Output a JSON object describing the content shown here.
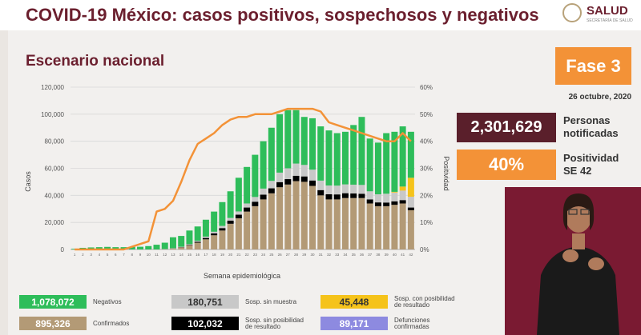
{
  "header": {
    "title": "COVID-19 México: casos positivos, sospechosos y negativos"
  },
  "logo": {
    "text": "SALUD",
    "subtext": "SECRETARÍA DE SALUD"
  },
  "subtitle": "Escenario nacional",
  "phase_badge": "Fase 3",
  "date": "26 octubre, 2020",
  "stats": [
    {
      "value": "2,301,629",
      "label_line1": "Personas",
      "label_line2": "notificadas",
      "color": "#5a1f2b"
    },
    {
      "value": "40%",
      "label_line1": "Positividad",
      "label_line2": "SE 42",
      "color": "#f39237"
    }
  ],
  "legend": [
    {
      "value": "1,078,072",
      "label_line1": "Negativos",
      "label_line2": "",
      "color": "#2ebd5a",
      "text_color": "#ffffff"
    },
    {
      "value": "180,751",
      "label_line1": "Sosp. sin muestra",
      "label_line2": "",
      "color": "#c8c8c8",
      "text_color": "#333333"
    },
    {
      "value": "45,448",
      "label_line1": "Sosp. con posibilidad",
      "label_line2": "de resultado",
      "color": "#f5c31a",
      "text_color": "#333333"
    },
    {
      "value": "895,326",
      "label_line1": "Confirmados",
      "label_line2": "",
      "color": "#b39a76",
      "text_color": "#ffffff"
    },
    {
      "value": "102,032",
      "label_line1": "Sosp. sin posibilidad",
      "label_line2": "de resultado",
      "color": "#000000",
      "text_color": "#ffffff"
    },
    {
      "value": "89,171",
      "label_line1": "Defunciones",
      "label_line2": "confirmadas",
      "color": "#8d8ae0",
      "text_color": "#ffffff"
    }
  ],
  "chart_data": {
    "type": "bar",
    "xlabel": "Semana epidemiológica",
    "ylabel": "Casos",
    "y2label": "Positividad",
    "ylim": [
      0,
      120000
    ],
    "y2lim": [
      0,
      60
    ],
    "yticks": [
      "0",
      "20,000",
      "40,000",
      "60,000",
      "80,000",
      "100,000",
      "120,000"
    ],
    "y2ticks": [
      "0%",
      "10%",
      "20%",
      "30%",
      "40%",
      "50%",
      "60%"
    ],
    "categories": [
      "1",
      "2",
      "3",
      "4",
      "5",
      "6",
      "7",
      "8",
      "9",
      "10",
      "11",
      "12",
      "13",
      "14",
      "15",
      "16",
      "17",
      "18",
      "19",
      "20",
      "21",
      "22",
      "23",
      "24",
      "25",
      "26",
      "27",
      "28",
      "29",
      "30",
      "31",
      "32",
      "33",
      "34",
      "35",
      "36",
      "37",
      "38",
      "39",
      "40",
      "41",
      "42"
    ],
    "series": [
      {
        "name": "Confirmados",
        "color": "#b39a76",
        "values": [
          0,
          0,
          0,
          0,
          0,
          0,
          0,
          0,
          0,
          0,
          0,
          200,
          600,
          1500,
          3000,
          5000,
          7500,
          10500,
          14000,
          19000,
          23000,
          28000,
          32000,
          37000,
          41500,
          46000,
          48000,
          50500,
          50000,
          47000,
          40000,
          37000,
          37000,
          38000,
          38000,
          38000,
          34000,
          32000,
          32000,
          33000,
          34000,
          29000
        ]
      },
      {
        "name": "Sosp. sin posibilidad de resultado",
        "color": "#000000",
        "values": [
          0,
          0,
          0,
          0,
          0,
          0,
          0,
          0,
          0,
          0,
          0,
          0,
          100,
          200,
          400,
          700,
          1000,
          1400,
          1800,
          2300,
          2700,
          3000,
          3300,
          3500,
          3700,
          3800,
          4000,
          4000,
          4000,
          4000,
          3900,
          3800,
          3700,
          3600,
          3400,
          3200,
          3000,
          2800,
          2700,
          2600,
          2500,
          2000
        ]
      },
      {
        "name": "Sosp. sin muestra",
        "color": "#c8c8c8",
        "values": [
          0,
          0,
          0,
          0,
          0,
          0,
          0,
          0,
          0,
          0,
          0,
          100,
          200,
          300,
          500,
          700,
          1000,
          1200,
          1600,
          2000,
          2400,
          3000,
          3500,
          4500,
          5500,
          7000,
          8000,
          9000,
          8500,
          8000,
          7000,
          6500,
          6500,
          6500,
          6500,
          6500,
          6000,
          6000,
          6500,
          6500,
          7000,
          8000
        ]
      },
      {
        "name": "Sosp. con posibilidad de resultado",
        "color": "#f5c31a",
        "values": [
          0,
          0,
          0,
          0,
          0,
          0,
          0,
          0,
          0,
          0,
          0,
          0,
          0,
          0,
          0,
          0,
          0,
          0,
          0,
          0,
          0,
          0,
          0,
          0,
          0,
          0,
          0,
          0,
          0,
          0,
          0,
          0,
          0,
          0,
          0,
          0,
          0,
          0,
          0,
          500,
          3000,
          14000
        ]
      },
      {
        "name": "Negativos",
        "color": "#2ebd5a",
        "values": [
          500,
          1200,
          1500,
          1700,
          1900,
          1700,
          1700,
          1900,
          2000,
          2500,
          3500,
          4700,
          8100,
          8000,
          10100,
          10600,
          12500,
          14900,
          17600,
          19700,
          24900,
          27000,
          31200,
          35000,
          39300,
          43200,
          43000,
          39500,
          35500,
          38000,
          40100,
          40700,
          38800,
          38900,
          44100,
          50300,
          39000,
          38200,
          44800,
          44400,
          44500,
          34000
        ]
      }
    ],
    "line": {
      "name": "Positividad",
      "color": "#f39237",
      "values": [
        0,
        0,
        0,
        0,
        0,
        0,
        0,
        1,
        2,
        3,
        14,
        15,
        18,
        25,
        33,
        39,
        41,
        43,
        46,
        48,
        49,
        49,
        50,
        50,
        50,
        51,
        52,
        52,
        52,
        52,
        51,
        47,
        46,
        45,
        44,
        43,
        42,
        41,
        40,
        40,
        43,
        40
      ]
    }
  }
}
